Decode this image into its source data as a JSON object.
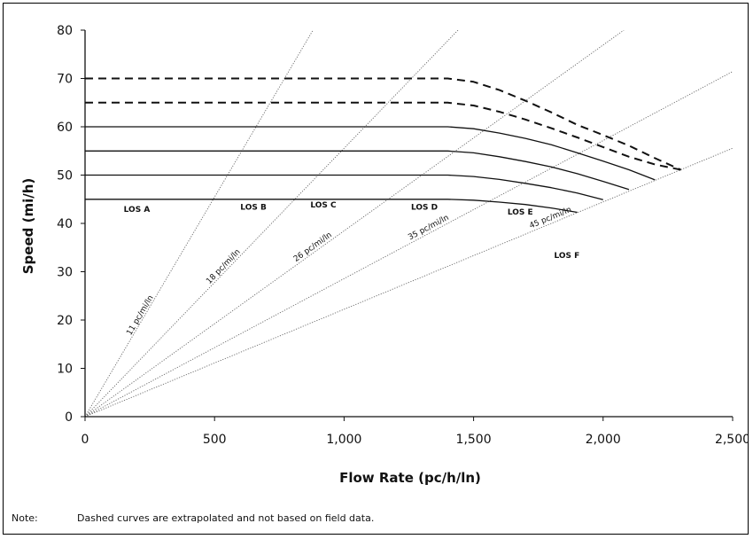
{
  "chart_data": {
    "type": "line",
    "title": "",
    "xlabel": "Flow Rate (pc/h/ln)",
    "ylabel": "Speed (mi/h)",
    "xlim": [
      0,
      2500
    ],
    "ylim": [
      0,
      80
    ],
    "x_ticks": [
      0,
      500,
      1000,
      1500,
      2000,
      2500
    ],
    "x_tick_labels": [
      "0",
      "500",
      "1,000",
      "1,500",
      "2,000",
      "2,500"
    ],
    "y_ticks": [
      0,
      10,
      20,
      30,
      40,
      50,
      60,
      70,
      80
    ],
    "y_tick_labels": [
      "0",
      "10",
      "20",
      "30",
      "40",
      "50",
      "60",
      "70",
      "80"
    ],
    "grid": false,
    "legend": "none",
    "series": [
      {
        "label": "70",
        "line_style": "dashed",
        "x": [
          0,
          1400,
          1500,
          1600,
          1700,
          1800,
          1900,
          2000,
          2100,
          2200,
          2300
        ],
        "y": [
          70,
          70,
          69.3,
          67.6,
          65.4,
          63.0,
          60.4,
          58.3,
          56.1,
          53.5,
          51.1
        ]
      },
      {
        "label": "65",
        "line_style": "dashed",
        "x": [
          0,
          1400,
          1500,
          1600,
          1700,
          1800,
          1900,
          2000,
          2100,
          2200,
          2300
        ],
        "y": [
          65,
          65,
          64.4,
          63.1,
          61.5,
          59.7,
          57.8,
          55.8,
          53.8,
          52.2,
          51.1
        ]
      },
      {
        "label": "60",
        "line_style": "solid",
        "x": [
          0,
          1400,
          1500,
          1600,
          1700,
          1800,
          1900,
          2000,
          2100,
          2200
        ],
        "y": [
          60,
          60,
          59.6,
          58.7,
          57.6,
          56.3,
          54.6,
          52.9,
          51.1,
          49.0
        ]
      },
      {
        "label": "55",
        "line_style": "solid",
        "x": [
          0,
          1400,
          1500,
          1600,
          1700,
          1800,
          1900,
          2000,
          2100
        ],
        "y": [
          55,
          55,
          54.6,
          53.8,
          52.8,
          51.7,
          50.3,
          48.7,
          47.0
        ]
      },
      {
        "label": "50",
        "line_style": "solid",
        "x": [
          0,
          1400,
          1500,
          1600,
          1700,
          1800,
          1900,
          2000
        ],
        "y": [
          50,
          50,
          49.7,
          49.1,
          48.3,
          47.4,
          46.3,
          44.9
        ]
      },
      {
        "label": "45",
        "line_style": "solid",
        "x": [
          0,
          1400,
          1500,
          1600,
          1700,
          1800,
          1900
        ],
        "y": [
          45,
          45,
          44.8,
          44.4,
          43.9,
          43.2,
          42.3
        ]
      }
    ],
    "density_lines": [
      {
        "label": "11 pc/mi/ln",
        "density": 11
      },
      {
        "label": "18 pc/mi/ln",
        "density": 18
      },
      {
        "label": "26 pc/mi/ln",
        "density": 26
      },
      {
        "label": "35 pc/mi/ln",
        "density": 35
      },
      {
        "label": "45 pc/mi/ln",
        "density": 45
      }
    ],
    "region_labels": [
      {
        "text": "LOS A",
        "x": 200,
        "y": 44
      },
      {
        "text": "LOS B",
        "x": 650,
        "y": 44.5
      },
      {
        "text": "LOS C",
        "x": 920,
        "y": 45
      },
      {
        "text": "LOS D",
        "x": 1310,
        "y": 44.5
      },
      {
        "text": "LOS E",
        "x": 1680,
        "y": 43.5
      },
      {
        "text": "LOS F",
        "x": 1860,
        "y": 34.5
      }
    ],
    "colors": {
      "curve": "#111111",
      "density_line": "#666666",
      "axis": "#111111"
    }
  },
  "note": {
    "label": "Note:",
    "text": "Dashed curves are extrapolated and not based on field data."
  }
}
